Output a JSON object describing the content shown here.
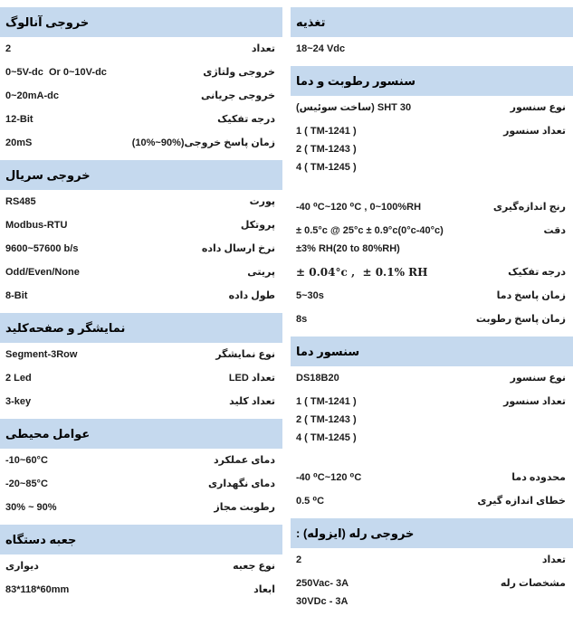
{
  "page": {
    "background": "#ffffff",
    "header_bar_color": "#c5d9ee",
    "text_color": "#1c1c1c"
  },
  "columns": {
    "left": {
      "sections": [
        {
          "title": "خروجی آنالوگ",
          "rows": [
            {
              "label": "تعداد",
              "values": [
                "2"
              ]
            },
            {
              "label": "خروجی ولتاژی",
              "values": [
                "0~5V-dc  Or 0~10V-dc"
              ]
            },
            {
              "label": "خروجی جریانی",
              "values": [
                "0~20mA-dc"
              ]
            },
            {
              "label": "درجه تفکیک",
              "values": [
                "12-Bit"
              ]
            },
            {
              "label": "زمان پاسخ خروجی",
              "label_suffix": "(10%~90%)",
              "values": [
                "20mS"
              ]
            }
          ]
        },
        {
          "title": "خروجی سریال",
          "rows": [
            {
              "label": "پورت",
              "values": [
                "RS485"
              ]
            },
            {
              "label": "پروتکل",
              "values": [
                "Modbus-RTU"
              ]
            },
            {
              "label": "نرخ ارسال داده",
              "values": [
                "9600~57600 b/s"
              ]
            },
            {
              "label": "پریتی",
              "values": [
                "Odd/Even/None"
              ]
            },
            {
              "label": "طول داده",
              "values": [
                "8-Bit"
              ]
            }
          ]
        },
        {
          "title": "نمایشگر و صفحه‌کلید",
          "rows": [
            {
              "label": "نوع نمایشگر",
              "values": [
                "Segment-3Row"
              ]
            },
            {
              "label": "تعداد LED",
              "values": [
                "2 Led"
              ]
            },
            {
              "label": "تعداد کلید",
              "values": [
                "3-key"
              ]
            }
          ]
        },
        {
          "title": "عوامل محیطی",
          "rows": [
            {
              "label": "دمای عملکرد",
              "values": [
                "-10~60°C"
              ]
            },
            {
              "label": "دمای نگهداری",
              "values": [
                "-20~85°C"
              ]
            },
            {
              "label": "رطوبت مجاز",
              "values": [
                "30% ~ 90%"
              ]
            }
          ]
        },
        {
          "title": "جعبه دستگاه",
          "rows": [
            {
              "label": "نوع جعبه",
              "values": [
                "دیواری"
              ]
            },
            {
              "label": "ابعاد",
              "values": [
                "83*118*60mm"
              ]
            }
          ]
        }
      ]
    },
    "right": {
      "sections": [
        {
          "title": "تغذیه",
          "rows": [
            {
              "label": "",
              "values": [
                "18~24 Vdc"
              ]
            }
          ]
        },
        {
          "title": "سنسور رطوبت و دما",
          "rows": [
            {
              "label": "نوع سنسور",
              "values": [
                "(ساخت سوئیس) SHT 30"
              ]
            },
            {
              "label": "تعداد سنسور",
              "values": [
                "1 ( TM-1241 )",
                "2 ( TM-1243 )",
                "4 ( TM-1245 )"
              ],
              "gap_after": true
            },
            {
              "label": "رنج اندازه‌گیری",
              "values": [
                "-40 ⁰C~120 ⁰C , 0~100%RH"
              ]
            },
            {
              "label": "دقت",
              "values": [
                "± 0.5°c @ 25°c ± 0.9°c(0°c-40°c)",
                "±3% RH(20 to 80%RH)"
              ]
            },
            {
              "label": "درجه تفکیک",
              "values": [
                "± 0.04°c ,  ± 0.1% RH"
              ],
              "serif": true
            },
            {
              "label": "زمان پاسخ دما",
              "values": [
                "5~30s"
              ]
            },
            {
              "label": "زمان پاسخ رطوبت",
              "values": [
                "8s"
              ]
            }
          ]
        },
        {
          "title": "سنسور دما",
          "rows": [
            {
              "label": "نوع سنسور",
              "values": [
                "DS18B20"
              ]
            },
            {
              "label": "تعداد سنسور",
              "values": [
                "1 ( TM-1241 )",
                "2 ( TM-1243 )",
                "4 ( TM-1245 )"
              ],
              "gap_after": true
            },
            {
              "label": "محدوده دما",
              "values": [
                "-40 ⁰C~120 ⁰C"
              ]
            },
            {
              "label": "خطای اندازه گیری",
              "values": [
                "0.5 ⁰C"
              ]
            }
          ]
        },
        {
          "title": "خروجی رله (ایزوله) :",
          "rows": [
            {
              "label": "تعداد",
              "values": [
                "2"
              ]
            },
            {
              "label": "مشخصات رله",
              "values": [
                "250Vac- 3A",
                "30VDc - 3A"
              ]
            }
          ]
        }
      ]
    }
  }
}
